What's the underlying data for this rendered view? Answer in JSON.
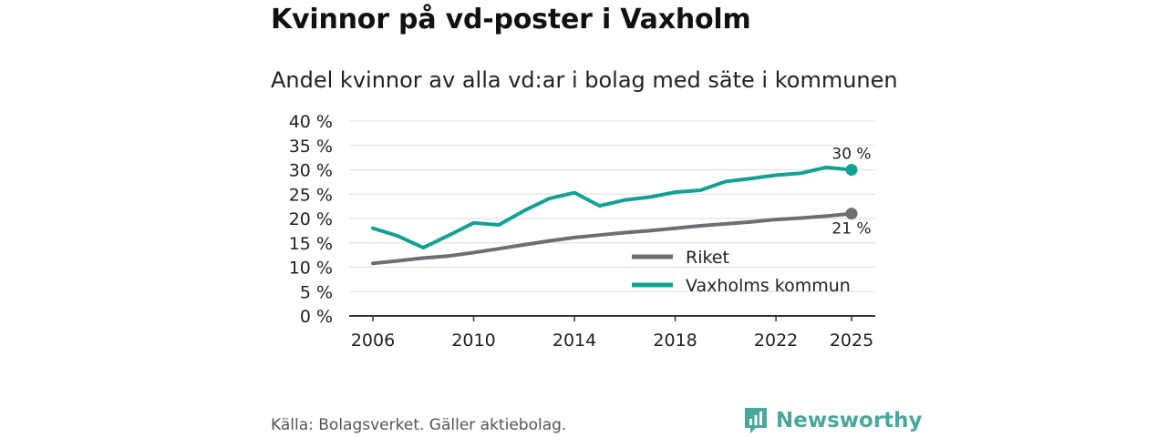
{
  "title": "Kvinnor på vd-poster i Vaxholm",
  "subtitle": "Andel kvinnor av alla vd:ar i bolag med säte i kommunen",
  "source": "Källa: Bolagsverket. Gäller aktiebolag.",
  "brand": {
    "name": "Newsworthy",
    "icon": "newsworthy-logo-icon"
  },
  "colors": {
    "riket": "#6e6d73",
    "vaxholm": "#12a192",
    "grid": "#dddddd",
    "axis": "#333333"
  },
  "chart_data": {
    "type": "line",
    "title": "Andel kvinnor av alla vd:ar i bolag med säte i kommunen",
    "xlabel": "",
    "ylabel": "",
    "xlim": [
      2006,
      2025
    ],
    "ylim": [
      0,
      40
    ],
    "x_ticks": [
      2006,
      2010,
      2014,
      2018,
      2022,
      2025
    ],
    "y_ticks": [
      0,
      5,
      10,
      15,
      20,
      25,
      30,
      35,
      40
    ],
    "y_tick_labels": [
      "0 %",
      "5 %",
      "10 %",
      "15 %",
      "20 %",
      "25 %",
      "30 %",
      "35 %",
      "40 %"
    ],
    "grid": true,
    "legend_position": "bottom-right",
    "x": [
      2006,
      2007,
      2008,
      2009,
      2010,
      2011,
      2012,
      2013,
      2014,
      2015,
      2016,
      2017,
      2018,
      2019,
      2020,
      2021,
      2022,
      2023,
      2024,
      2025
    ],
    "series": [
      {
        "name": "Riket",
        "color": "#6e6d73",
        "values": [
          10.8,
          11.3,
          11.9,
          12.3,
          13.0,
          13.8,
          14.6,
          15.4,
          16.1,
          16.6,
          17.1,
          17.5,
          18.0,
          18.5,
          18.9,
          19.3,
          19.8,
          20.1,
          20.5,
          21.0
        ],
        "end_label": "21 %"
      },
      {
        "name": "Vaxholms kommun",
        "color": "#12a192",
        "values": [
          18.0,
          16.4,
          14.0,
          16.5,
          19.1,
          18.7,
          21.6,
          24.1,
          25.3,
          22.6,
          23.8,
          24.4,
          25.4,
          25.8,
          27.6,
          28.2,
          28.9,
          29.3,
          30.5,
          30.0
        ],
        "end_label": "30 %"
      }
    ]
  }
}
